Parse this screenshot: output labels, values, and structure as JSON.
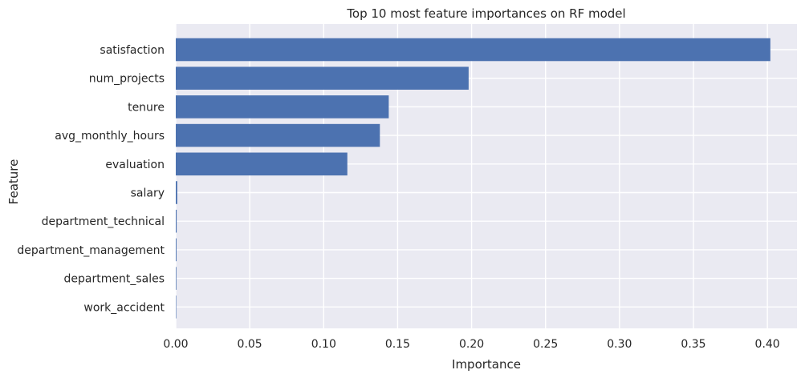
{
  "chart_data": {
    "type": "bar",
    "orientation": "horizontal",
    "title": "Top 10 most feature importances on RF model",
    "xlabel": "Importance",
    "ylabel": "Feature",
    "categories": [
      "satisfaction",
      "num_projects",
      "tenure",
      "avg_monthly_hours",
      "evaluation",
      "salary",
      "department_technical",
      "department_management",
      "department_sales",
      "work_accident"
    ],
    "values": [
      0.402,
      0.198,
      0.144,
      0.138,
      0.116,
      0.001,
      0.0006,
      0.0005,
      0.0004,
      0.0003
    ],
    "xlim": [
      0.0,
      0.42
    ],
    "xticks": [
      "0.00",
      "0.05",
      "0.10",
      "0.15",
      "0.20",
      "0.25",
      "0.30",
      "0.35",
      "0.40"
    ],
    "grid": true,
    "colors": {
      "bar": "#4c72b0",
      "background": "#eaeaf2",
      "grid": "#ffffff"
    }
  }
}
